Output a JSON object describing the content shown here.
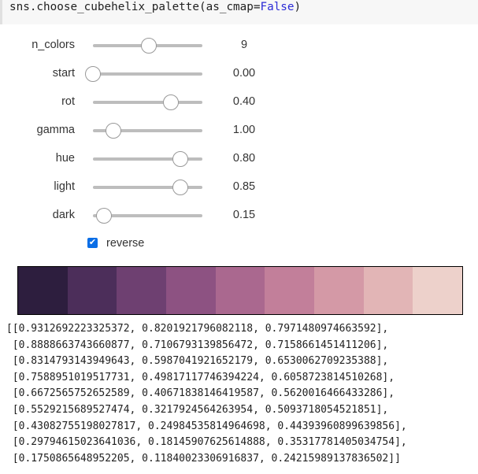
{
  "code": {
    "prefix": "sns.choose_cubehelix_palette(as_cmap=",
    "keyword": "False",
    "suffix": ")"
  },
  "sliders": [
    {
      "label": "n_colors",
      "value": "9",
      "position": 0.51
    },
    {
      "label": "start",
      "value": "0.00",
      "position": 0.0
    },
    {
      "label": "rot",
      "value": "0.40",
      "position": 0.71
    },
    {
      "label": "gamma",
      "value": "1.00",
      "position": 0.19
    },
    {
      "label": "hue",
      "value": "0.80",
      "position": 0.8
    },
    {
      "label": "light",
      "value": "0.85",
      "position": 0.8
    },
    {
      "label": "dark",
      "value": "0.15",
      "position": 0.1
    }
  ],
  "reverse": {
    "label": "reverse",
    "checked": true
  },
  "palette_colors": [
    "#2d1e3e",
    "#4c2e5a",
    "#6e4071",
    "#8d5282",
    "#aa688f",
    "#c27f9a",
    "#d499a6",
    "#e2b5b6",
    "#edd1cb"
  ],
  "output_lines": [
    "[[0.9312692223325372, 0.8201921796082118, 0.7971480974663592],",
    " [0.8888663743660877, 0.7106793139856472, 0.7158661451411206],",
    " [0.8314793143949643, 0.5987041921652179, 0.6530062709235388],",
    " [0.7588951019517731, 0.49817117746394224, 0.6058723814510268],",
    " [0.6672565752652589, 0.40671838146419587, 0.5620016466433286],",
    " [0.5529215689527474, 0.3217924564263954, 0.5093718054521851],",
    " [0.43082755198027817, 0.24984535814964698, 0.44393960899639856],",
    " [0.29794615023641036, 0.18145907625614888, 0.35317781405034754],",
    " [0.1750865648952205, 0.11840023306916837, 0.24215989137836502]]"
  ]
}
